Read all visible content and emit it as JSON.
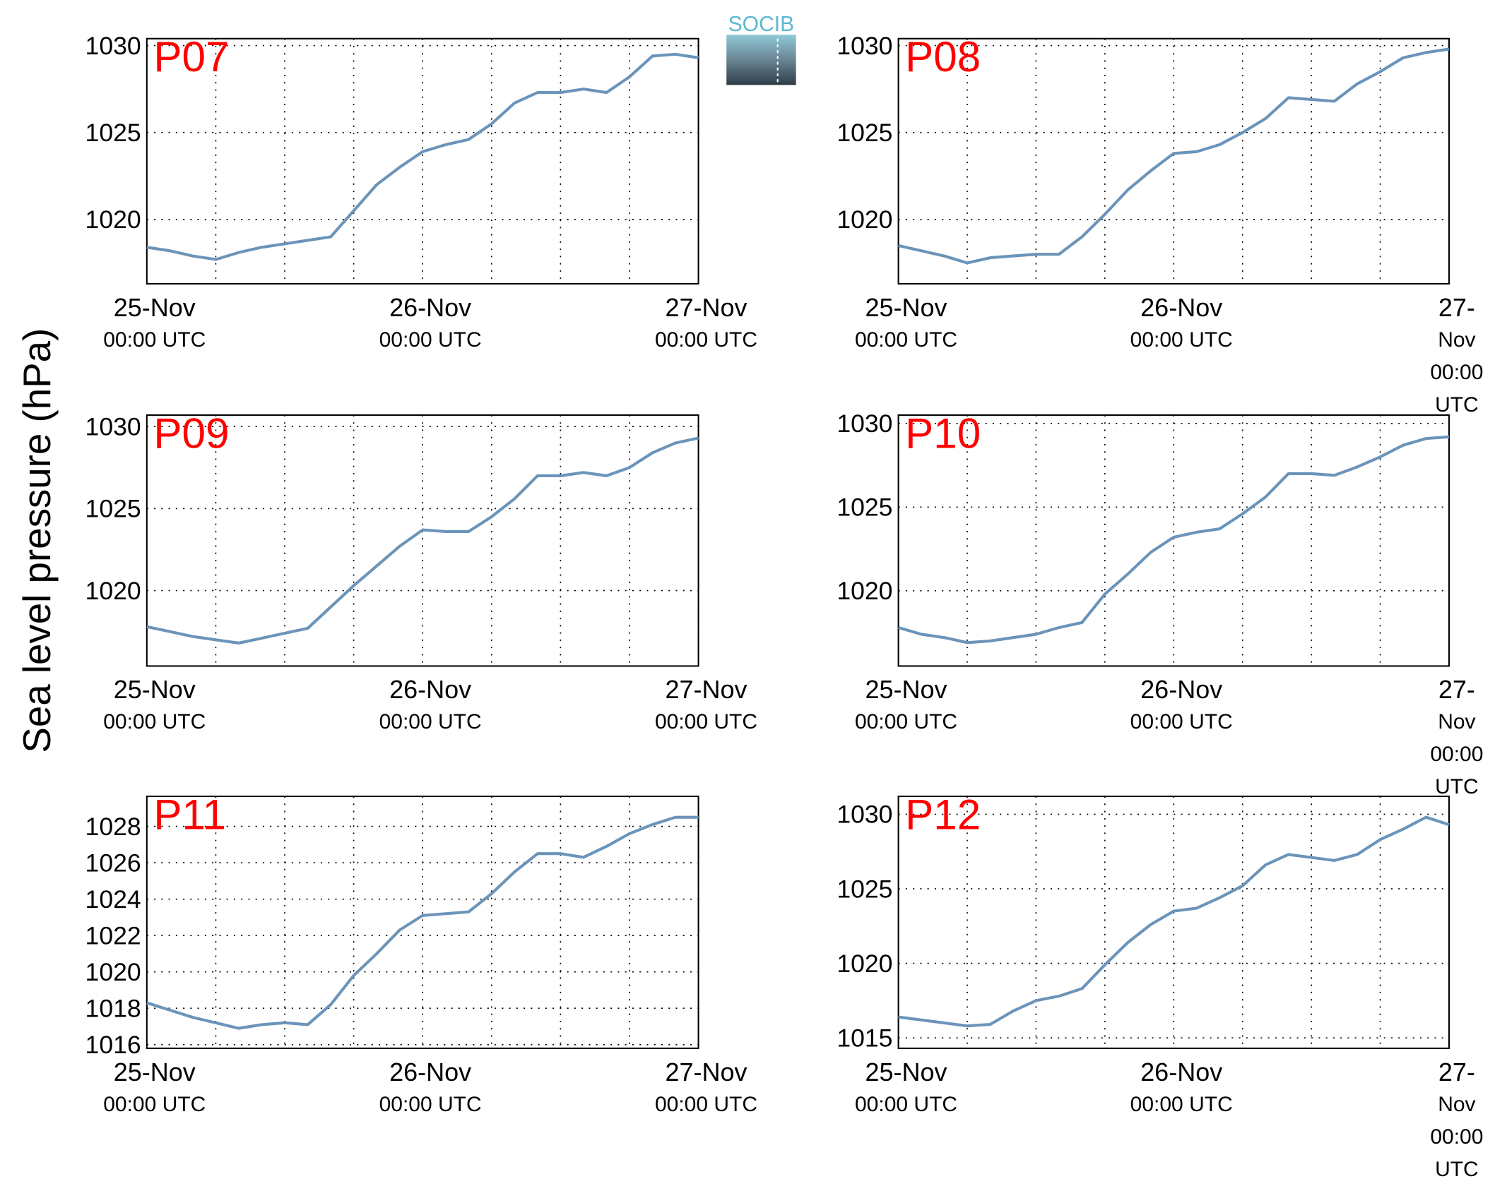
{
  "ylabel": "Sea level pressure (hPa)",
  "logo": "SOCIB",
  "chart_data": [
    {
      "type": "line",
      "title": "P07",
      "color": "#6b94b9",
      "x": [
        "25-Nov 00:00",
        "25-Nov 02:00",
        "25-Nov 04:00",
        "25-Nov 06:00",
        "25-Nov 08:00",
        "25-Nov 10:00",
        "25-Nov 12:00",
        "25-Nov 14:00",
        "25-Nov 16:00",
        "25-Nov 18:00",
        "25-Nov 20:00",
        "25-Nov 22:00",
        "26-Nov 00:00",
        "26-Nov 02:00",
        "26-Nov 04:00",
        "26-Nov 06:00",
        "26-Nov 08:00",
        "26-Nov 10:00",
        "26-Nov 12:00",
        "26-Nov 14:00",
        "26-Nov 16:00",
        "26-Nov 18:00",
        "26-Nov 20:00",
        "26-Nov 22:00",
        "27-Nov 00:00"
      ],
      "values": [
        1018.4,
        1018.2,
        1017.9,
        1017.7,
        1018.1,
        1018.4,
        1018.6,
        1018.8,
        1019.0,
        1020.5,
        1022.0,
        1023.0,
        1023.9,
        1024.3,
        1024.6,
        1025.5,
        1026.7,
        1027.3,
        1027.3,
        1027.5,
        1027.3,
        1028.2,
        1029.4,
        1029.5,
        1029.3
      ],
      "xlim": [
        "25-Nov 00:00",
        "27-Nov 00:00"
      ],
      "xticks": [
        {
          "value": "25-Nov 00:00",
          "label": "25-Nov\n00:00 UTC"
        },
        {
          "value": "26-Nov 00:00",
          "label": "26-Nov\n00:00 UTC"
        },
        {
          "value": "27-Nov 00:00",
          "label": "27-Nov\n00:00 UTC"
        }
      ],
      "xminor": [
        "25-Nov 06:00",
        "25-Nov 12:00",
        "25-Nov 18:00",
        "26-Nov 06:00",
        "26-Nov 12:00",
        "26-Nov 18:00"
      ],
      "ylim": [
        1016.3,
        1030.4
      ],
      "yticks": [
        1020,
        1025,
        1030
      ],
      "grid": true
    },
    {
      "type": "line",
      "title": "P08",
      "color": "#6b94b9",
      "x": [
        "25-Nov 00:00",
        "25-Nov 02:00",
        "25-Nov 04:00",
        "25-Nov 06:00",
        "25-Nov 08:00",
        "25-Nov 10:00",
        "25-Nov 12:00",
        "25-Nov 14:00",
        "25-Nov 16:00",
        "25-Nov 18:00",
        "25-Nov 20:00",
        "25-Nov 22:00",
        "26-Nov 00:00",
        "26-Nov 02:00",
        "26-Nov 04:00",
        "26-Nov 06:00",
        "26-Nov 08:00",
        "26-Nov 10:00",
        "26-Nov 12:00",
        "26-Nov 14:00",
        "26-Nov 16:00",
        "26-Nov 18:00",
        "26-Nov 20:00",
        "26-Nov 22:00",
        "27-Nov 00:00"
      ],
      "values": [
        1018.5,
        1018.2,
        1017.9,
        1017.5,
        1017.8,
        1017.9,
        1018.0,
        1018.0,
        1019.0,
        1020.3,
        1021.7,
        1022.8,
        1023.8,
        1023.9,
        1024.3,
        1025.0,
        1025.8,
        1027.0,
        1026.9,
        1026.8,
        1027.8,
        1028.5,
        1029.3,
        1029.6,
        1029.8
      ],
      "xlim": [
        "25-Nov 00:00",
        "27-Nov 00:00"
      ],
      "xticks": [
        {
          "value": "25-Nov 00:00",
          "label": "25-Nov\n00:00 UTC"
        },
        {
          "value": "26-Nov 00:00",
          "label": "26-Nov\n00:00 UTC"
        },
        {
          "value": "27-Nov 00:00",
          "label": "27-Nov\n00:00 UTC"
        }
      ],
      "xminor": [
        "25-Nov 06:00",
        "25-Nov 12:00",
        "25-Nov 18:00",
        "26-Nov 06:00",
        "26-Nov 12:00",
        "26-Nov 18:00"
      ],
      "ylim": [
        1016.3,
        1030.4
      ],
      "yticks": [
        1020,
        1025,
        1030
      ],
      "grid": true
    },
    {
      "type": "line",
      "title": "P09",
      "color": "#6b94b9",
      "x": [
        "25-Nov 00:00",
        "25-Nov 02:00",
        "25-Nov 04:00",
        "25-Nov 06:00",
        "25-Nov 08:00",
        "25-Nov 10:00",
        "25-Nov 12:00",
        "25-Nov 14:00",
        "25-Nov 16:00",
        "25-Nov 18:00",
        "25-Nov 20:00",
        "25-Nov 22:00",
        "26-Nov 00:00",
        "26-Nov 02:00",
        "26-Nov 04:00",
        "26-Nov 06:00",
        "26-Nov 08:00",
        "26-Nov 10:00",
        "26-Nov 12:00",
        "26-Nov 14:00",
        "26-Nov 16:00",
        "26-Nov 18:00",
        "26-Nov 20:00",
        "26-Nov 22:00",
        "27-Nov 00:00"
      ],
      "values": [
        1017.8,
        1017.5,
        1017.2,
        1017.0,
        1016.8,
        1017.1,
        1017.4,
        1017.7,
        1019.0,
        1020.3,
        1021.5,
        1022.7,
        1023.7,
        1023.6,
        1023.6,
        1024.5,
        1025.6,
        1027.0,
        1027.0,
        1027.2,
        1027.0,
        1027.5,
        1028.4,
        1029.0,
        1029.3
      ],
      "xlim": [
        "25-Nov 00:00",
        "27-Nov 00:00"
      ],
      "xticks": [
        {
          "value": "25-Nov 00:00",
          "label": "25-Nov\n00:00 UTC"
        },
        {
          "value": "26-Nov 00:00",
          "label": "26-Nov\n00:00 UTC"
        },
        {
          "value": "27-Nov 00:00",
          "label": "27-Nov\n00:00 UTC"
        }
      ],
      "xminor": [
        "25-Nov 06:00",
        "25-Nov 12:00",
        "25-Nov 18:00",
        "26-Nov 06:00",
        "26-Nov 12:00",
        "26-Nov 18:00"
      ],
      "ylim": [
        1015.4,
        1030.7
      ],
      "yticks": [
        1020,
        1025,
        1030
      ],
      "grid": true
    },
    {
      "type": "line",
      "title": "P10",
      "color": "#6b94b9",
      "x": [
        "25-Nov 00:00",
        "25-Nov 02:00",
        "25-Nov 04:00",
        "25-Nov 06:00",
        "25-Nov 08:00",
        "25-Nov 10:00",
        "25-Nov 12:00",
        "25-Nov 14:00",
        "25-Nov 16:00",
        "25-Nov 18:00",
        "25-Nov 20:00",
        "25-Nov 22:00",
        "26-Nov 00:00",
        "26-Nov 02:00",
        "26-Nov 04:00",
        "26-Nov 06:00",
        "26-Nov 08:00",
        "26-Nov 10:00",
        "26-Nov 12:00",
        "26-Nov 14:00",
        "26-Nov 16:00",
        "26-Nov 18:00",
        "26-Nov 20:00",
        "26-Nov 22:00",
        "27-Nov 00:00"
      ],
      "values": [
        1017.8,
        1017.4,
        1017.2,
        1016.9,
        1017.0,
        1017.2,
        1017.4,
        1017.8,
        1018.1,
        1019.8,
        1021.0,
        1022.3,
        1023.2,
        1023.5,
        1023.7,
        1024.6,
        1025.6,
        1027.0,
        1027.0,
        1026.9,
        1027.4,
        1028.0,
        1028.7,
        1029.1,
        1029.2
      ],
      "xlim": [
        "25-Nov 00:00",
        "27-Nov 00:00"
      ],
      "xticks": [
        {
          "value": "25-Nov 00:00",
          "label": "25-Nov\n00:00 UTC"
        },
        {
          "value": "26-Nov 00:00",
          "label": "26-Nov\n00:00 UTC"
        },
        {
          "value": "27-Nov 00:00",
          "label": "27-Nov\n00:00 UTC"
        }
      ],
      "xminor": [
        "25-Nov 06:00",
        "25-Nov 12:00",
        "25-Nov 18:00",
        "26-Nov 06:00",
        "26-Nov 12:00",
        "26-Nov 18:00"
      ],
      "ylim": [
        1015.5,
        1030.5
      ],
      "yticks": [
        1020,
        1025,
        1030
      ],
      "grid": true
    },
    {
      "type": "line",
      "title": "P11",
      "color": "#6b94b9",
      "x": [
        "25-Nov 00:00",
        "25-Nov 02:00",
        "25-Nov 04:00",
        "25-Nov 06:00",
        "25-Nov 08:00",
        "25-Nov 10:00",
        "25-Nov 12:00",
        "25-Nov 14:00",
        "25-Nov 16:00",
        "25-Nov 18:00",
        "25-Nov 20:00",
        "25-Nov 22:00",
        "26-Nov 00:00",
        "26-Nov 02:00",
        "26-Nov 04:00",
        "26-Nov 06:00",
        "26-Nov 08:00",
        "26-Nov 10:00",
        "26-Nov 12:00",
        "26-Nov 14:00",
        "26-Nov 16:00",
        "26-Nov 18:00",
        "26-Nov 20:00",
        "26-Nov 22:00",
        "27-Nov 00:00"
      ],
      "values": [
        1018.3,
        1017.9,
        1017.5,
        1017.2,
        1016.9,
        1017.1,
        1017.2,
        1017.1,
        1018.2,
        1019.8,
        1021.0,
        1022.3,
        1023.1,
        1023.2,
        1023.3,
        1024.3,
        1025.5,
        1026.5,
        1026.5,
        1026.3,
        1026.9,
        1027.6,
        1028.1,
        1028.5,
        1028.5
      ],
      "xlim": [
        "25-Nov 00:00",
        "27-Nov 00:00"
      ],
      "xticks": [
        {
          "value": "25-Nov 00:00",
          "label": "25-Nov\n00:00 UTC"
        },
        {
          "value": "26-Nov 00:00",
          "label": "26-Nov\n00:00 UTC"
        },
        {
          "value": "27-Nov 00:00",
          "label": "27-Nov\n00:00 UTC"
        }
      ],
      "xminor": [
        "25-Nov 06:00",
        "25-Nov 12:00",
        "25-Nov 18:00",
        "26-Nov 06:00",
        "26-Nov 12:00",
        "26-Nov 18:00"
      ],
      "ylim": [
        1015.8,
        1029.65
      ],
      "yticks": [
        1016,
        1018,
        1020,
        1022,
        1024,
        1026,
        1028
      ],
      "grid": true
    },
    {
      "type": "line",
      "title": "P12",
      "color": "#6b94b9",
      "x": [
        "25-Nov 00:00",
        "25-Nov 02:00",
        "25-Nov 04:00",
        "25-Nov 06:00",
        "25-Nov 08:00",
        "25-Nov 10:00",
        "25-Nov 12:00",
        "25-Nov 14:00",
        "25-Nov 16:00",
        "25-Nov 18:00",
        "25-Nov 20:00",
        "25-Nov 22:00",
        "26-Nov 00:00",
        "26-Nov 02:00",
        "26-Nov 04:00",
        "26-Nov 06:00",
        "26-Nov 08:00",
        "26-Nov 10:00",
        "26-Nov 12:00",
        "26-Nov 14:00",
        "26-Nov 16:00",
        "26-Nov 18:00",
        "26-Nov 20:00",
        "26-Nov 22:00",
        "27-Nov 00:00"
      ],
      "values": [
        1016.4,
        1016.2,
        1016.0,
        1015.8,
        1015.9,
        1016.8,
        1017.5,
        1017.8,
        1018.3,
        1019.9,
        1021.4,
        1022.6,
        1023.5,
        1023.7,
        1024.4,
        1025.2,
        1026.6,
        1027.3,
        1027.1,
        1026.9,
        1027.3,
        1028.3,
        1029.0,
        1029.8,
        1029.3
      ],
      "xlim": [
        "25-Nov 00:00",
        "27-Nov 00:00"
      ],
      "xticks": [
        {
          "value": "25-Nov 00:00",
          "label": "25-Nov\n00:00 UTC"
        },
        {
          "value": "26-Nov 00:00",
          "label": "26-Nov\n00:00 UTC"
        },
        {
          "value": "27-Nov 00:00",
          "label": "27-Nov\n00:00 UTC"
        }
      ],
      "xminor": [
        "25-Nov 06:00",
        "25-Nov 12:00",
        "25-Nov 18:00",
        "26-Nov 06:00",
        "26-Nov 12:00",
        "26-Nov 18:00"
      ],
      "ylim": [
        1014.3,
        1031.2
      ],
      "yticks": [
        1015,
        1020,
        1025,
        1030
      ],
      "grid": true
    }
  ]
}
